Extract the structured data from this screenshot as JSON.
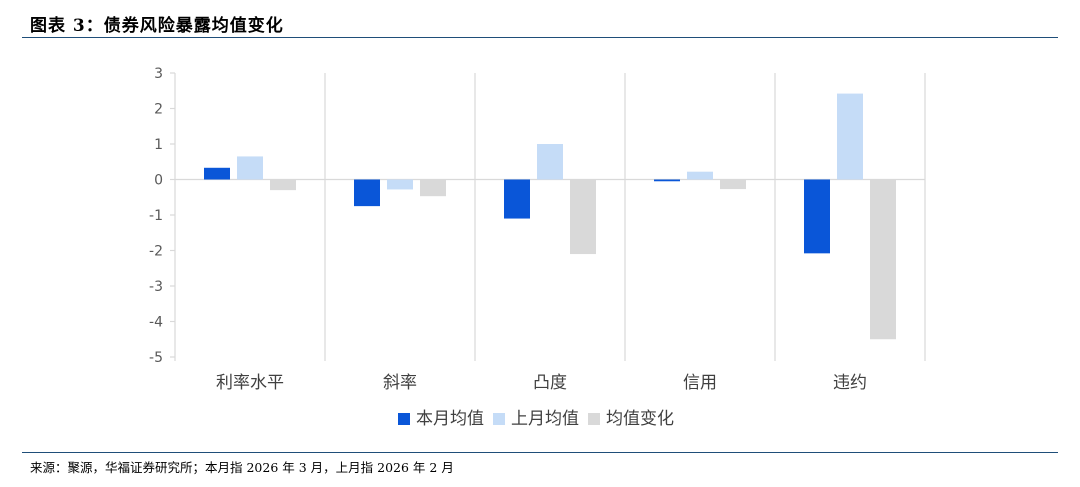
{
  "figure": {
    "title": "图表 3：债券风险暴露均值变化",
    "source": "来源：聚源，华福证券研究所；本月指 2026 年 3 月，上月指 2026 年 2 月"
  },
  "chart_data": {
    "type": "bar",
    "categories": [
      "利率水平",
      "斜率",
      "凸度",
      "信用",
      "违约"
    ],
    "series": [
      {
        "name": "本月均值",
        "color": "#0a56d8",
        "values": [
          0.33,
          -0.75,
          -1.1,
          -0.05,
          -2.08
        ]
      },
      {
        "name": "上月均值",
        "color": "#c5dcf7",
        "values": [
          0.65,
          -0.28,
          1.0,
          0.22,
          2.42
        ]
      },
      {
        "name": "均值变化",
        "color": "#d9d9d9",
        "values": [
          -0.3,
          -0.47,
          -2.1,
          -0.27,
          -4.5
        ]
      }
    ],
    "ylim": [
      -5,
      3
    ],
    "yticks": [
      3,
      2,
      1,
      0,
      -1,
      -2,
      -3,
      -4,
      -5
    ],
    "grid": "vertical category separators",
    "legend": "bottom"
  }
}
